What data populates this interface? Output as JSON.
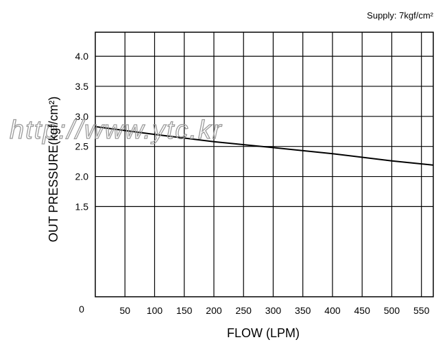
{
  "chart_data": {
    "type": "line",
    "annotation": "Supply: 7kgf/cm²",
    "xlabel": "FLOW (LPM)",
    "ylabel": "OUT PRESSURE(kgf/cm²)",
    "origin_label": "0",
    "x_ticks": [
      {
        "value": 50,
        "label": "50"
      },
      {
        "value": 100,
        "label": "100"
      },
      {
        "value": 150,
        "label": "150"
      },
      {
        "value": 200,
        "label": "200"
      },
      {
        "value": 250,
        "label": "250"
      },
      {
        "value": 300,
        "label": "300"
      },
      {
        "value": 350,
        "label": "350"
      },
      {
        "value": 400,
        "label": "400"
      },
      {
        "value": 450,
        "label": "450"
      },
      {
        "value": 500,
        "label": "500"
      },
      {
        "value": 550,
        "label": "550"
      }
    ],
    "y_ticks": [
      {
        "value": 1.5,
        "label": "1.5"
      },
      {
        "value": 2.0,
        "label": "2.0"
      },
      {
        "value": 2.5,
        "label": "2.5"
      },
      {
        "value": 3.0,
        "label": "3.0"
      },
      {
        "value": 3.5,
        "label": "3.5"
      },
      {
        "value": 4.0,
        "label": "4.0"
      }
    ],
    "xlim": [
      0,
      570
    ],
    "ylim": [
      0,
      4.4
    ],
    "grid": true,
    "series": [
      {
        "x": [
          0,
          100,
          200,
          300,
          400,
          500,
          570
        ],
        "y": [
          2.83,
          2.7,
          2.58,
          2.48,
          2.38,
          2.26,
          2.19
        ]
      }
    ]
  },
  "watermark": "http://www.ytc.kr"
}
